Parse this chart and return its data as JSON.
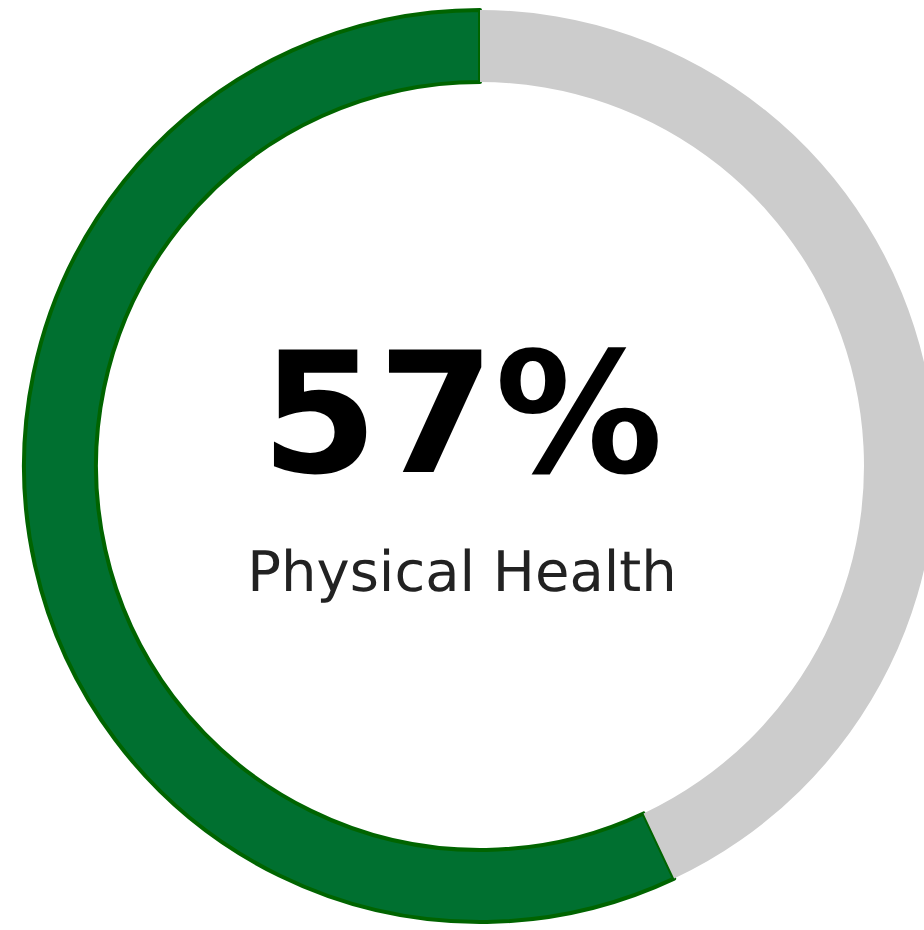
{
  "chart_data": {
    "type": "donut",
    "categories": [
      "Physical Health",
      null
    ],
    "values": [
      57,
      43
    ],
    "colors": [
      "#007030",
      "#cccccc"
    ],
    "value_labels": [
      "57%",
      null
    ]
  }
}
